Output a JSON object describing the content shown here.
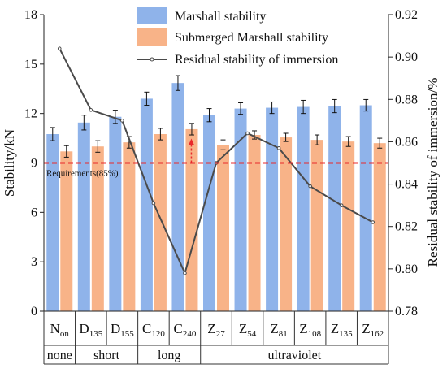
{
  "chart_data": {
    "type": "bar",
    "categories": [
      {
        "main": "N",
        "sub": "on"
      },
      {
        "main": "D",
        "sub": "135"
      },
      {
        "main": "D",
        "sub": "155"
      },
      {
        "main": "C",
        "sub": "120"
      },
      {
        "main": "C",
        "sub": "240"
      },
      {
        "main": "Z",
        "sub": "27"
      },
      {
        "main": "Z",
        "sub": "54"
      },
      {
        "main": "Z",
        "sub": "81"
      },
      {
        "main": "Z",
        "sub": "108"
      },
      {
        "main": "Z",
        "sub": "135"
      },
      {
        "main": "Z",
        "sub": "162"
      }
    ],
    "groups": [
      {
        "label": "none",
        "count": 1
      },
      {
        "label": "short",
        "count": 2
      },
      {
        "label": "long",
        "count": 2
      },
      {
        "label": "ultraviolet",
        "count": 6
      }
    ],
    "series": [
      {
        "name": "Marshall stability",
        "axis": "left",
        "kind": "bar",
        "color": "#8fb3ea",
        "values": [
          10.75,
          11.45,
          11.8,
          12.9,
          13.85,
          11.9,
          12.3,
          12.35,
          12.4,
          12.45,
          12.5
        ],
        "errors": [
          0.4,
          0.45,
          0.4,
          0.4,
          0.45,
          0.4,
          0.35,
          0.35,
          0.4,
          0.4,
          0.35
        ]
      },
      {
        "name": "Submerged Marshall stability",
        "axis": "left",
        "kind": "bar",
        "color": "#f8b388",
        "values": [
          9.7,
          10.0,
          10.25,
          10.75,
          11.05,
          10.1,
          10.7,
          10.55,
          10.4,
          10.3,
          10.2
        ],
        "errors": [
          0.35,
          0.35,
          0.35,
          0.35,
          0.35,
          0.3,
          0.25,
          0.25,
          0.3,
          0.3,
          0.3
        ]
      },
      {
        "name": "Residual stability of immersion",
        "axis": "right",
        "kind": "line",
        "color": "#4a4a4a",
        "values": [
          0.904,
          0.875,
          0.87,
          0.831,
          0.798,
          0.85,
          0.864,
          0.857,
          0.839,
          0.83,
          0.822
        ]
      }
    ],
    "y_left": {
      "label": "Stability/kN",
      "ylim": [
        0,
        18
      ],
      "ticks": [
        "0",
        "3",
        "6",
        "9",
        "12",
        "15",
        "18"
      ]
    },
    "y_right": {
      "label": "Residual stability of immersion/%",
      "ylim": [
        0.78,
        0.92
      ],
      "ticks": [
        "0.78",
        "0.80",
        "0.82",
        "0.84",
        "0.86",
        "0.88",
        "0.90",
        "0.92"
      ]
    },
    "requirement": {
      "label": "Requirements(85%)",
      "value": 0.85,
      "color": "#e8282c"
    },
    "legend_position": "top",
    "grid": false
  }
}
